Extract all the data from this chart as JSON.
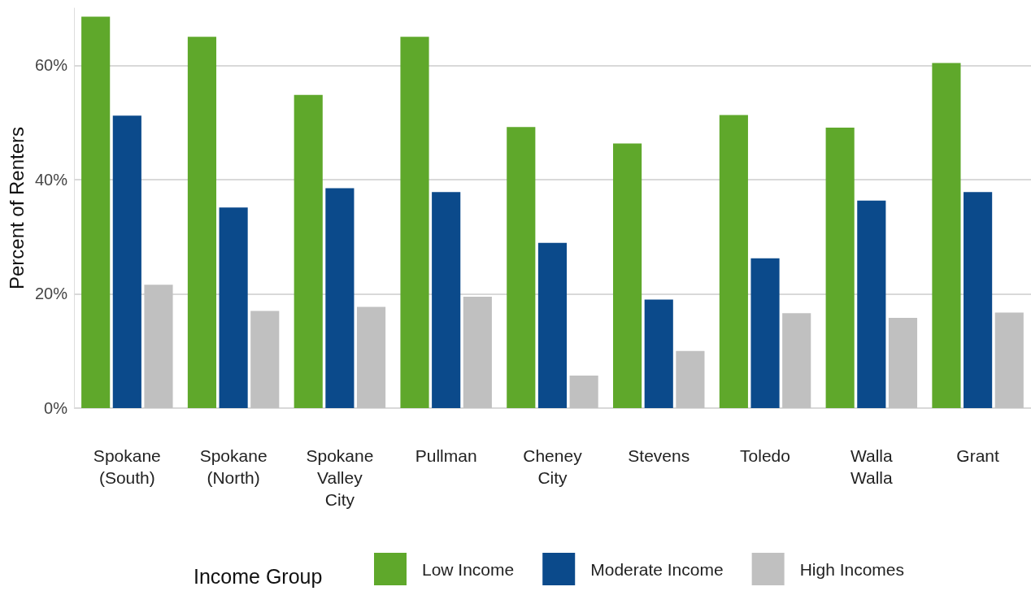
{
  "chart_data": {
    "type": "bar",
    "ylabel": "Percent of Renters",
    "legend_title": "Income Group",
    "categories": [
      "Spokane\n(South)",
      "Spokane\n(North)",
      "Spokane\nValley\nCity",
      "Pullman",
      "Cheney\nCity",
      "Stevens",
      "Toledo",
      "Walla\nWalla",
      "Grant"
    ],
    "series": [
      {
        "name": "Low Income",
        "color": "#5fa82b",
        "values": [
          68.5,
          65,
          54.8,
          65,
          49.2,
          46.3,
          51.3,
          49.1,
          60.4
        ]
      },
      {
        "name": "Moderate Income",
        "color": "#0b4a8b",
        "values": [
          51.2,
          35.1,
          38.5,
          37.8,
          28.9,
          19,
          26.2,
          36.3,
          37.8
        ]
      },
      {
        "name": "High Incomes",
        "color": "#c0c0c0",
        "values": [
          21.6,
          17,
          17.7,
          19.5,
          5.7,
          10,
          16.6,
          15.8,
          16.7
        ]
      }
    ],
    "ylim": [
      0,
      70
    ],
    "yticks": [
      {
        "value": 0,
        "label": "0%"
      },
      {
        "value": 20,
        "label": "20%"
      },
      {
        "value": 40,
        "label": "40%"
      },
      {
        "value": 60,
        "label": "60%"
      }
    ],
    "grid": "y",
    "legend": "bottom"
  }
}
